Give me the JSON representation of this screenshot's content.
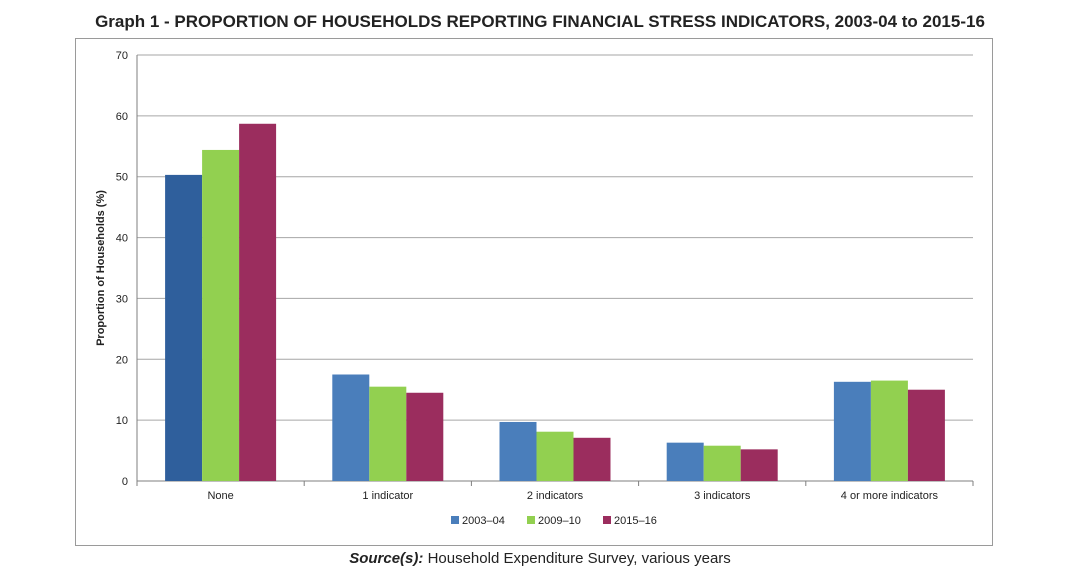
{
  "title": "Graph 1 - PROPORTION OF HOUSEHOLDS REPORTING FINANCIAL STRESS INDICATORS, 2003-04 to 2015-16",
  "source": {
    "label": "Source(s):",
    "text": "Household Expenditure Survey, various years"
  },
  "colors": {
    "grid": "#a6a6a6",
    "axis": "#7f7f7f"
  },
  "chart_data": {
    "type": "bar",
    "title": "Graph 1 - PROPORTION OF HOUSEHOLDS REPORTING FINANCIAL STRESS INDICATORS, 2003-04 to 2015-16",
    "xlabel": "",
    "ylabel": "Proportion of Households (%)",
    "ylim": [
      0,
      70
    ],
    "yticks": [
      0,
      10,
      20,
      30,
      40,
      50,
      60,
      70
    ],
    "grid": true,
    "legend_position": "bottom",
    "categories": [
      "None",
      "1 indicator",
      "2 indicators",
      "3 indicators",
      "4 or more indicators"
    ],
    "series": [
      {
        "name": "2003–04",
        "color": "#4a7ebb",
        "values": [
          50.3,
          17.5,
          9.7,
          6.3,
          16.3
        ]
      },
      {
        "name": "2009–10",
        "color": "#92d050",
        "values": [
          54.4,
          15.5,
          8.1,
          5.8,
          16.5
        ]
      },
      {
        "name": "2015–16",
        "color": "#9b2d5e",
        "values": [
          58.7,
          14.5,
          7.1,
          5.2,
          15.0
        ]
      }
    ]
  }
}
